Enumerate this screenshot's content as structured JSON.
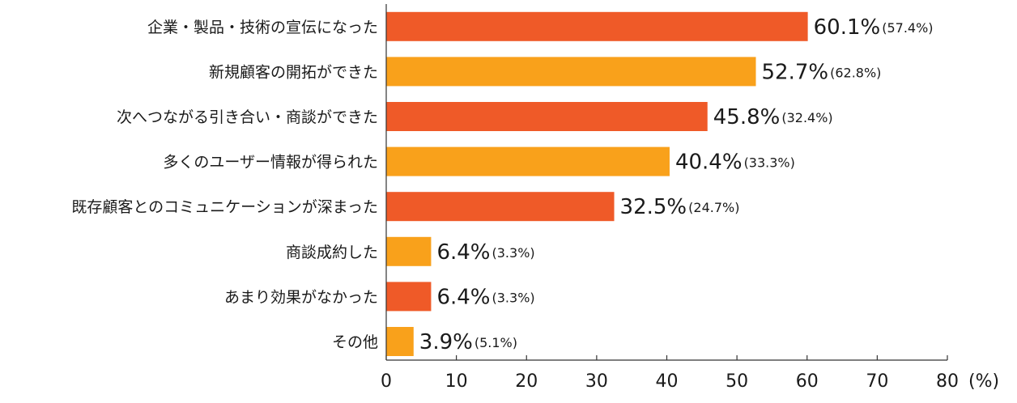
{
  "chart_data": {
    "type": "bar",
    "orientation": "horizontal",
    "categories": [
      "企業・製品・技術の宣伝になった",
      "新規顧客の開拓ができた",
      "次へつながる引き合い・商談ができた",
      "多くのユーザー情報が得られた",
      "既存顧客とのコミュニケーションが深まった",
      "商談成約した",
      "あまり効果がなかった",
      "その他"
    ],
    "values": [
      60.1,
      52.7,
      45.8,
      40.4,
      32.5,
      6.4,
      6.4,
      3.9
    ],
    "value_labels": [
      "60.1%",
      "52.7%",
      "45.8%",
      "40.4%",
      "32.5%",
      "6.4%",
      "6.4%",
      "3.9%"
    ],
    "previous_values": [
      57.4,
      62.8,
      32.4,
      33.3,
      24.7,
      3.3,
      3.3,
      5.1
    ],
    "previous_labels": [
      "(57.4%)",
      "(62.8%)",
      "(32.4%)",
      "(33.3%)",
      "(24.7%)",
      "(3.3%)",
      "(3.3%)",
      "(5.1%)"
    ],
    "bar_colors": [
      "#ef5a28",
      "#f9a11b",
      "#ef5a28",
      "#f9a11b",
      "#ef5a28",
      "#f9a11b",
      "#ef5a28",
      "#f9a11b"
    ],
    "xlim": [
      0,
      80
    ],
    "xticks": [
      0,
      10,
      20,
      30,
      40,
      50,
      60,
      70,
      80
    ],
    "x_unit": "(%)",
    "grid": false,
    "title": "",
    "xlabel": "",
    "ylabel": ""
  }
}
